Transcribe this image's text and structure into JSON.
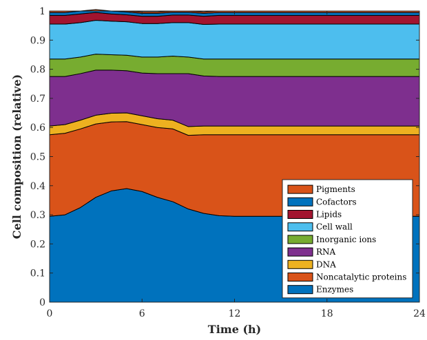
{
  "chart_data": {
    "type": "area",
    "stacked": true,
    "xlabel": "Time (h)",
    "ylabel": "Cell composition (relative)",
    "xlim": [
      0,
      24
    ],
    "ylim": [
      0,
      1
    ],
    "xticks": [
      0,
      6,
      12,
      18,
      24
    ],
    "yticks": [
      0,
      0.1,
      0.2,
      0.3,
      0.4,
      0.5,
      0.6,
      0.7,
      0.8,
      0.9,
      1
    ],
    "ytick_labels": [
      "0",
      "0.1",
      "0.2",
      "0.3",
      "0.4",
      "0.5",
      "0.6",
      "0.7",
      "0.8",
      "0.9",
      "1"
    ],
    "grid": false,
    "legend_position": "bottom-right",
    "x": [
      0,
      1,
      2,
      3,
      4,
      5,
      6,
      7,
      8,
      9,
      10,
      11,
      12,
      13,
      14,
      15,
      16,
      17,
      18,
      19,
      20,
      21,
      22,
      23,
      24
    ],
    "series": [
      {
        "name": "Enzymes",
        "color": "#0072BD",
        "values": [
          0.295,
          0.3,
          0.325,
          0.36,
          0.382,
          0.39,
          0.38,
          0.36,
          0.345,
          0.32,
          0.305,
          0.297,
          0.295,
          0.295,
          0.295,
          0.295,
          0.295,
          0.295,
          0.295,
          0.295,
          0.295,
          0.295,
          0.295,
          0.295,
          0.295
        ]
      },
      {
        "name": "Noncatalytic proteins",
        "color": "#D95319",
        "values": [
          0.28,
          0.28,
          0.27,
          0.252,
          0.237,
          0.23,
          0.23,
          0.24,
          0.25,
          0.253,
          0.27,
          0.278,
          0.28,
          0.28,
          0.28,
          0.28,
          0.28,
          0.28,
          0.28,
          0.28,
          0.28,
          0.28,
          0.28,
          0.28,
          0.28
        ]
      },
      {
        "name": "DNA",
        "color": "#EDB120",
        "values": [
          0.03,
          0.03,
          0.03,
          0.03,
          0.03,
          0.03,
          0.03,
          0.03,
          0.03,
          0.03,
          0.03,
          0.03,
          0.03,
          0.03,
          0.03,
          0.03,
          0.03,
          0.03,
          0.03,
          0.03,
          0.03,
          0.03,
          0.03,
          0.03,
          0.03
        ]
      },
      {
        "name": "RNA",
        "color": "#7E2F8E",
        "values": [
          0.17,
          0.165,
          0.16,
          0.155,
          0.148,
          0.145,
          0.147,
          0.155,
          0.16,
          0.182,
          0.172,
          0.17,
          0.17,
          0.17,
          0.17,
          0.17,
          0.17,
          0.17,
          0.17,
          0.17,
          0.17,
          0.17,
          0.17,
          0.17,
          0.17
        ]
      },
      {
        "name": "Inorganic ions",
        "color": "#77AC30",
        "values": [
          0.06,
          0.06,
          0.057,
          0.055,
          0.053,
          0.053,
          0.055,
          0.057,
          0.06,
          0.057,
          0.058,
          0.06,
          0.06,
          0.06,
          0.06,
          0.06,
          0.06,
          0.06,
          0.06,
          0.06,
          0.06,
          0.06,
          0.06,
          0.06,
          0.06
        ]
      },
      {
        "name": "Cell wall",
        "color": "#4DBEEE",
        "values": [
          0.12,
          0.12,
          0.118,
          0.116,
          0.115,
          0.115,
          0.115,
          0.115,
          0.115,
          0.118,
          0.119,
          0.12,
          0.12,
          0.12,
          0.12,
          0.12,
          0.12,
          0.12,
          0.12,
          0.12,
          0.12,
          0.12,
          0.12,
          0.12,
          0.12
        ]
      },
      {
        "name": "Lipids",
        "color": "#A2142F",
        "values": [
          0.03,
          0.03,
          0.03,
          0.027,
          0.025,
          0.024,
          0.025,
          0.025,
          0.026,
          0.026,
          0.028,
          0.03,
          0.03,
          0.03,
          0.03,
          0.03,
          0.03,
          0.03,
          0.03,
          0.03,
          0.03,
          0.03,
          0.03,
          0.03,
          0.03
        ]
      },
      {
        "name": "Cofactors",
        "color": "#0072BD",
        "values": [
          0.01,
          0.01,
          0.01,
          0.01,
          0.01,
          0.01,
          0.01,
          0.01,
          0.01,
          0.01,
          0.01,
          0.01,
          0.01,
          0.01,
          0.01,
          0.01,
          0.01,
          0.01,
          0.01,
          0.01,
          0.01,
          0.01,
          0.01,
          0.01,
          0.01
        ]
      },
      {
        "name": "Pigments",
        "color": "#D95319",
        "values": [
          0.005,
          0.005,
          0.005,
          0.005,
          0.005,
          0.005,
          0.005,
          0.005,
          0.005,
          0.005,
          0.005,
          0.005,
          0.005,
          0.005,
          0.005,
          0.005,
          0.005,
          0.005,
          0.005,
          0.005,
          0.005,
          0.005,
          0.005,
          0.005,
          0.005
        ]
      }
    ]
  }
}
